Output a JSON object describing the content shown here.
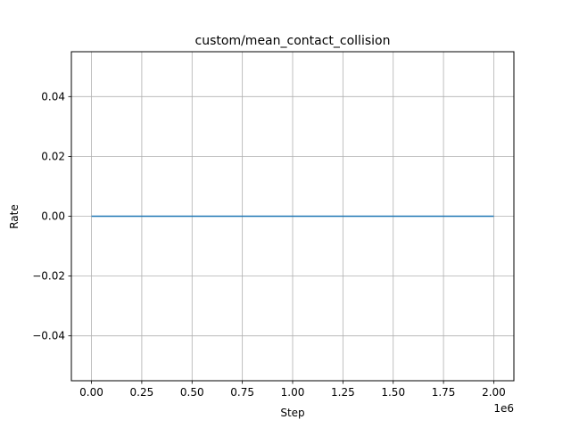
{
  "chart_data": {
    "type": "line",
    "title": "custom/mean_contact_collision",
    "xlabel": "Step",
    "ylabel": "Rate",
    "x_offset_label": "1e6",
    "xlim": [
      -100000,
      2100000
    ],
    "ylim": [
      -0.055,
      0.055
    ],
    "x_ticks": [
      0,
      250000,
      500000,
      750000,
      1000000,
      1250000,
      1500000,
      1750000,
      2000000
    ],
    "x_tick_labels": [
      "0.00",
      "0.25",
      "0.50",
      "0.75",
      "1.00",
      "1.25",
      "1.50",
      "1.75",
      "2.00"
    ],
    "y_ticks": [
      -0.04,
      -0.02,
      0.0,
      0.02,
      0.04
    ],
    "y_tick_labels": [
      "−0.04",
      "−0.02",
      "0.00",
      "0.02",
      "0.04"
    ],
    "grid": true,
    "series": [
      {
        "color": "#1f77b4",
        "x": [
          0,
          2000000
        ],
        "y": [
          0.0,
          0.0
        ]
      }
    ]
  }
}
